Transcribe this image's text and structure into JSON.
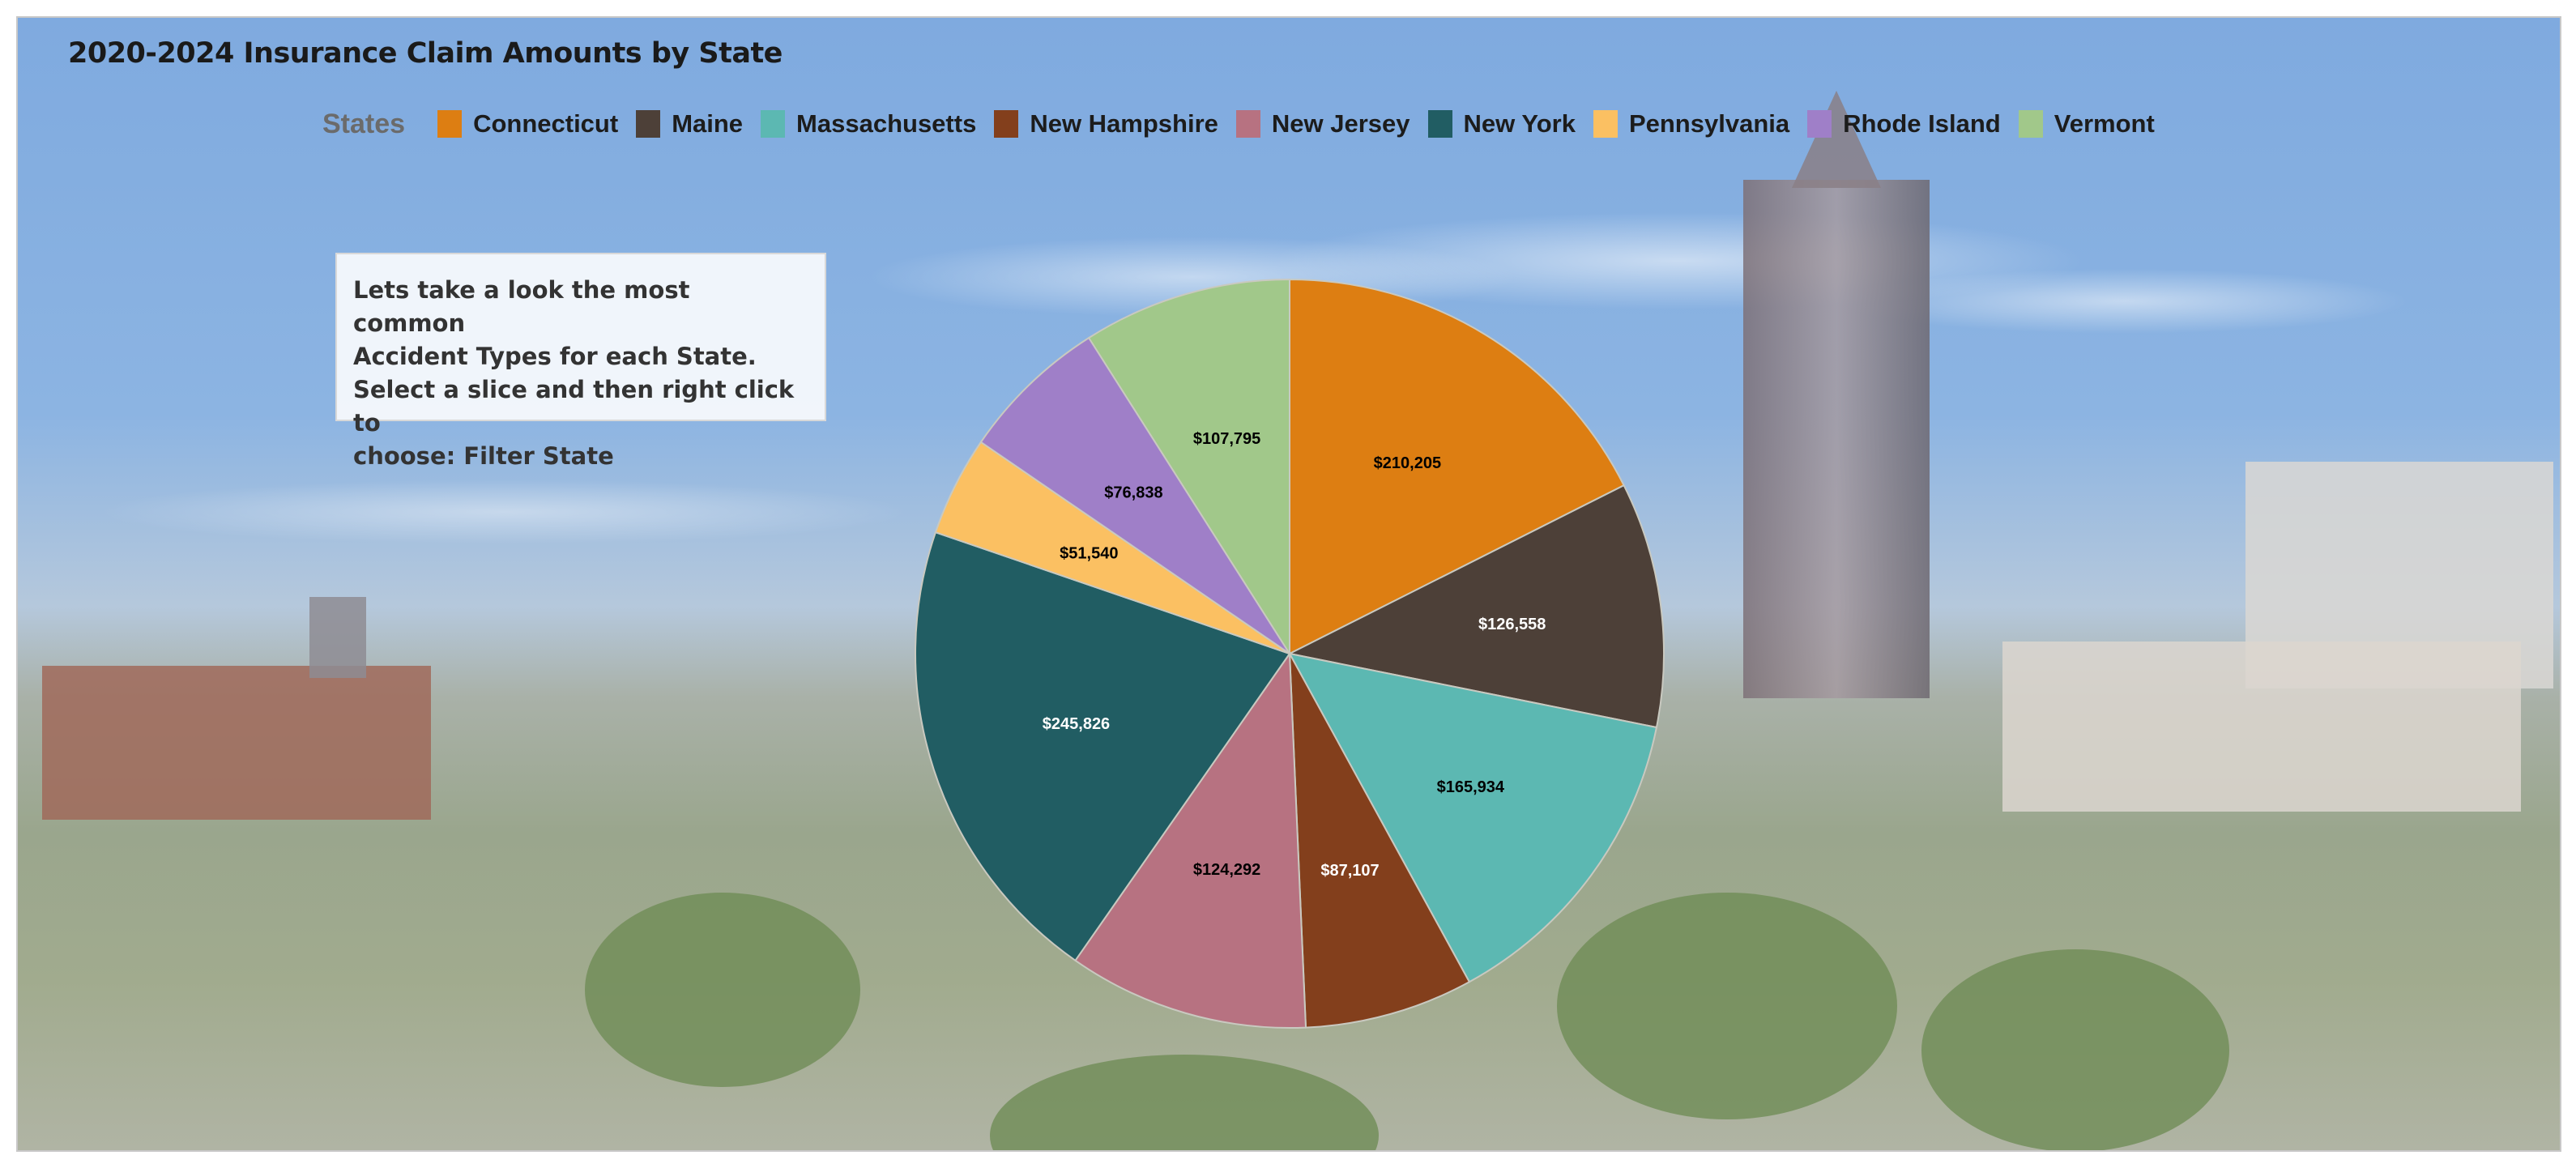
{
  "title": "2020-2024 Insurance Claim Amounts by State",
  "note": {
    "lines": [
      "Lets take a look the most common",
      "Accident Types for each State.",
      "Select a slice and then right click to",
      "choose: Filter State"
    ]
  },
  "chart_data": {
    "type": "pie",
    "title": "2020-2024 Insurance Claim Amounts by State",
    "legend_title": "States",
    "legend_position": "top",
    "start_angle": "12 o'clock, clockwise",
    "categories": [
      "Connecticut",
      "Maine",
      "Massachusetts",
      "New Hampshire",
      "New Jersey",
      "New York",
      "Pennsylvania",
      "Rhode Island",
      "Vermont"
    ],
    "values": [
      210205,
      126558,
      165934,
      87107,
      124292,
      245826,
      51540,
      76838,
      107795
    ],
    "labels": [
      "$210,205",
      "$126,558",
      "$165,934",
      "$87,107",
      "$124,292",
      "$245,826",
      "$51,540",
      "$76,838",
      "$107,795"
    ],
    "colors": [
      "#dd7e12",
      "#4d4038",
      "#5cb8b2",
      "#833f1c",
      "#b77281",
      "#215d63",
      "#fbc062",
      "#9f7fc8",
      "#a1c88a"
    ],
    "label_colors": [
      "#000000",
      "#ffffff",
      "#000000",
      "#ffffff",
      "#000000",
      "#ffffff",
      "#000000",
      "#000000",
      "#000000"
    ]
  }
}
